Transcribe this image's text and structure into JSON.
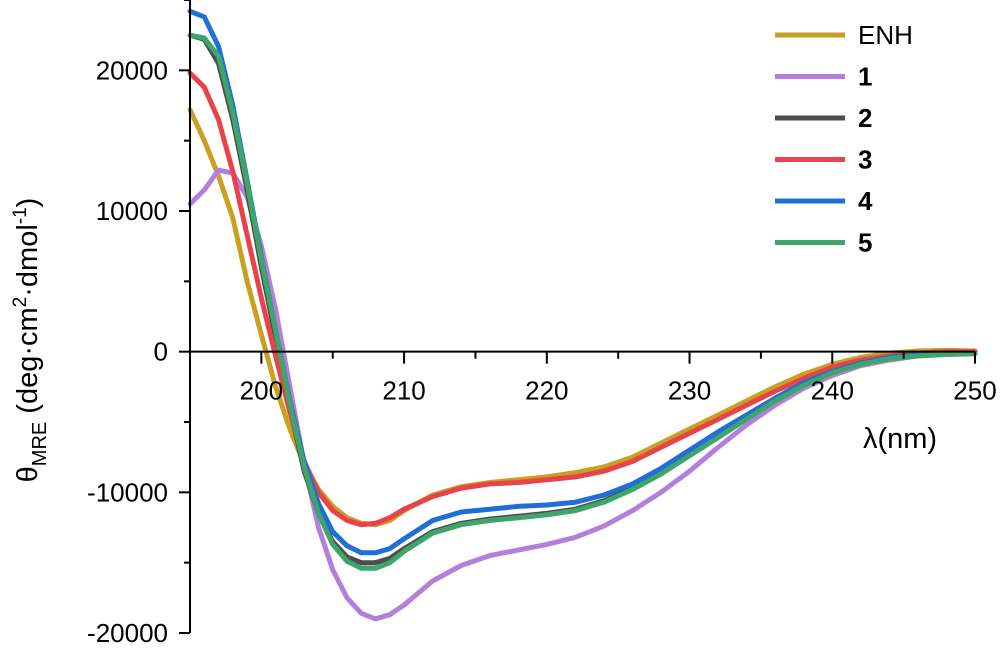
{
  "chart_data": {
    "type": "line",
    "title": "",
    "xlabel": "λ(nm)",
    "ylabel": {
      "main": "θ",
      "sub": "MRE",
      "units_pre": " (deg·cm",
      "units_sup1": "2",
      "units_mid": "·dmol",
      "units_sup2": "-1",
      "units_post": ")"
    },
    "xlim": [
      195,
      250
    ],
    "ylim": [
      -20000,
      25000
    ],
    "x_ticks": [
      200,
      210,
      220,
      230,
      240,
      250
    ],
    "x_tick_labels": [
      "200",
      "210",
      "220",
      "230",
      "240",
      "250"
    ],
    "y_ticks": [
      -20000,
      -10000,
      0,
      10000,
      20000
    ],
    "y_tick_labels": [
      "-20000",
      "-10000",
      "0",
      "10000",
      "20000"
    ],
    "grid": false,
    "legend_position": "top-right",
    "series": [
      {
        "name": "ENH",
        "color": "#C9A021",
        "bold": false,
        "points": [
          [
            195,
            17200
          ],
          [
            196,
            15000
          ],
          [
            197,
            12500
          ],
          [
            198,
            9500
          ],
          [
            199,
            5000
          ],
          [
            200,
            1200
          ],
          [
            201,
            -2500
          ],
          [
            202,
            -5500
          ],
          [
            203,
            -8000
          ],
          [
            204,
            -9800
          ],
          [
            205,
            -11000
          ],
          [
            206,
            -11800
          ],
          [
            207,
            -12200
          ],
          [
            208,
            -12300
          ],
          [
            209,
            -12000
          ],
          [
            210,
            -11300
          ],
          [
            212,
            -10200
          ],
          [
            214,
            -9600
          ],
          [
            216,
            -9300
          ],
          [
            218,
            -9100
          ],
          [
            220,
            -8900
          ],
          [
            222,
            -8600
          ],
          [
            224,
            -8200
          ],
          [
            226,
            -7500
          ],
          [
            228,
            -6500
          ],
          [
            230,
            -5500
          ],
          [
            232,
            -4500
          ],
          [
            234,
            -3500
          ],
          [
            236,
            -2500
          ],
          [
            238,
            -1600
          ],
          [
            240,
            -900
          ],
          [
            242,
            -400
          ],
          [
            244,
            -100
          ],
          [
            246,
            50
          ],
          [
            248,
            100
          ],
          [
            250,
            50
          ]
        ]
      },
      {
        "name": "1",
        "color": "#B57EDC",
        "bold": true,
        "points": [
          [
            195,
            10500
          ],
          [
            196,
            11500
          ],
          [
            197,
            12900
          ],
          [
            198,
            12700
          ],
          [
            199,
            11000
          ],
          [
            200,
            7500
          ],
          [
            201,
            3000
          ],
          [
            202,
            -2500
          ],
          [
            203,
            -8000
          ],
          [
            204,
            -12500
          ],
          [
            205,
            -15500
          ],
          [
            206,
            -17500
          ],
          [
            207,
            -18600
          ],
          [
            208,
            -19000
          ],
          [
            209,
            -18700
          ],
          [
            210,
            -18000
          ],
          [
            212,
            -16300
          ],
          [
            214,
            -15200
          ],
          [
            216,
            -14500
          ],
          [
            218,
            -14100
          ],
          [
            220,
            -13700
          ],
          [
            222,
            -13200
          ],
          [
            224,
            -12400
          ],
          [
            226,
            -11300
          ],
          [
            228,
            -10000
          ],
          [
            230,
            -8500
          ],
          [
            232,
            -6800
          ],
          [
            234,
            -5200
          ],
          [
            236,
            -3800
          ],
          [
            238,
            -2600
          ],
          [
            240,
            -1700
          ],
          [
            242,
            -1000
          ],
          [
            244,
            -600
          ],
          [
            246,
            -300
          ],
          [
            248,
            -150
          ],
          [
            250,
            -100
          ]
        ]
      },
      {
        "name": "2",
        "color": "#4D4D4D",
        "bold": true,
        "points": [
          [
            195,
            22500
          ],
          [
            196,
            22200
          ],
          [
            197,
            20500
          ],
          [
            198,
            16500
          ],
          [
            199,
            11500
          ],
          [
            200,
            6000
          ],
          [
            201,
            1000
          ],
          [
            202,
            -4000
          ],
          [
            203,
            -8500
          ],
          [
            204,
            -11500
          ],
          [
            205,
            -13500
          ],
          [
            206,
            -14600
          ],
          [
            207,
            -15000
          ],
          [
            208,
            -15000
          ],
          [
            209,
            -14700
          ],
          [
            210,
            -14000
          ],
          [
            212,
            -12800
          ],
          [
            214,
            -12200
          ],
          [
            216,
            -11900
          ],
          [
            218,
            -11700
          ],
          [
            220,
            -11500
          ],
          [
            222,
            -11200
          ],
          [
            224,
            -10600
          ],
          [
            226,
            -9700
          ],
          [
            228,
            -8600
          ],
          [
            230,
            -7300
          ],
          [
            232,
            -6000
          ],
          [
            234,
            -4700
          ],
          [
            236,
            -3400
          ],
          [
            238,
            -2300
          ],
          [
            240,
            -1400
          ],
          [
            242,
            -800
          ],
          [
            244,
            -400
          ],
          [
            246,
            -200
          ],
          [
            248,
            -100
          ],
          [
            250,
            -100
          ]
        ]
      },
      {
        "name": "3",
        "color": "#E8434A",
        "bold": true,
        "points": [
          [
            195,
            19800
          ],
          [
            196,
            18800
          ],
          [
            197,
            16500
          ],
          [
            198,
            12800
          ],
          [
            199,
            8300
          ],
          [
            200,
            3800
          ],
          [
            201,
            -300
          ],
          [
            202,
            -4300
          ],
          [
            203,
            -7800
          ],
          [
            204,
            -10000
          ],
          [
            205,
            -11300
          ],
          [
            206,
            -12000
          ],
          [
            207,
            -12300
          ],
          [
            208,
            -12200
          ],
          [
            209,
            -11800
          ],
          [
            210,
            -11200
          ],
          [
            212,
            -10300
          ],
          [
            214,
            -9700
          ],
          [
            216,
            -9400
          ],
          [
            218,
            -9300
          ],
          [
            220,
            -9100
          ],
          [
            222,
            -8900
          ],
          [
            224,
            -8500
          ],
          [
            226,
            -7800
          ],
          [
            228,
            -6800
          ],
          [
            230,
            -5800
          ],
          [
            232,
            -4800
          ],
          [
            234,
            -3800
          ],
          [
            236,
            -2800
          ],
          [
            238,
            -1900
          ],
          [
            240,
            -1100
          ],
          [
            242,
            -600
          ],
          [
            244,
            -300
          ],
          [
            246,
            -100
          ],
          [
            248,
            0
          ],
          [
            250,
            0
          ]
        ]
      },
      {
        "name": "4",
        "color": "#1F6FD6",
        "bold": true,
        "points": [
          [
            195,
            24200
          ],
          [
            196,
            23800
          ],
          [
            197,
            21700
          ],
          [
            198,
            17500
          ],
          [
            199,
            12200
          ],
          [
            200,
            6700
          ],
          [
            201,
            1500
          ],
          [
            202,
            -3500
          ],
          [
            203,
            -7800
          ],
          [
            204,
            -10800
          ],
          [
            205,
            -12800
          ],
          [
            206,
            -13800
          ],
          [
            207,
            -14300
          ],
          [
            208,
            -14300
          ],
          [
            209,
            -14000
          ],
          [
            210,
            -13300
          ],
          [
            212,
            -12000
          ],
          [
            214,
            -11400
          ],
          [
            216,
            -11200
          ],
          [
            218,
            -11000
          ],
          [
            220,
            -10900
          ],
          [
            222,
            -10700
          ],
          [
            224,
            -10200
          ],
          [
            226,
            -9400
          ],
          [
            228,
            -8300
          ],
          [
            230,
            -7000
          ],
          [
            232,
            -5700
          ],
          [
            234,
            -4500
          ],
          [
            236,
            -3300
          ],
          [
            238,
            -2200
          ],
          [
            240,
            -1400
          ],
          [
            242,
            -800
          ],
          [
            244,
            -400
          ],
          [
            246,
            -200
          ],
          [
            248,
            -100
          ],
          [
            250,
            -100
          ]
        ]
      },
      {
        "name": "5",
        "color": "#3FA66B",
        "bold": true,
        "points": [
          [
            195,
            22500
          ],
          [
            196,
            22300
          ],
          [
            197,
            21000
          ],
          [
            198,
            17000
          ],
          [
            199,
            12000
          ],
          [
            200,
            6500
          ],
          [
            201,
            1500
          ],
          [
            202,
            -3700
          ],
          [
            203,
            -8200
          ],
          [
            204,
            -11500
          ],
          [
            205,
            -13700
          ],
          [
            206,
            -14900
          ],
          [
            207,
            -15400
          ],
          [
            208,
            -15400
          ],
          [
            209,
            -15000
          ],
          [
            210,
            -14200
          ],
          [
            212,
            -12900
          ],
          [
            214,
            -12300
          ],
          [
            216,
            -12000
          ],
          [
            218,
            -11800
          ],
          [
            220,
            -11600
          ],
          [
            222,
            -11300
          ],
          [
            224,
            -10700
          ],
          [
            226,
            -9800
          ],
          [
            228,
            -8700
          ],
          [
            230,
            -7400
          ],
          [
            232,
            -6100
          ],
          [
            234,
            -4800
          ],
          [
            236,
            -3500
          ],
          [
            238,
            -2400
          ],
          [
            240,
            -1500
          ],
          [
            242,
            -900
          ],
          [
            244,
            -500
          ],
          [
            246,
            -300
          ],
          [
            248,
            -200
          ],
          [
            250,
            -150
          ]
        ]
      }
    ]
  }
}
